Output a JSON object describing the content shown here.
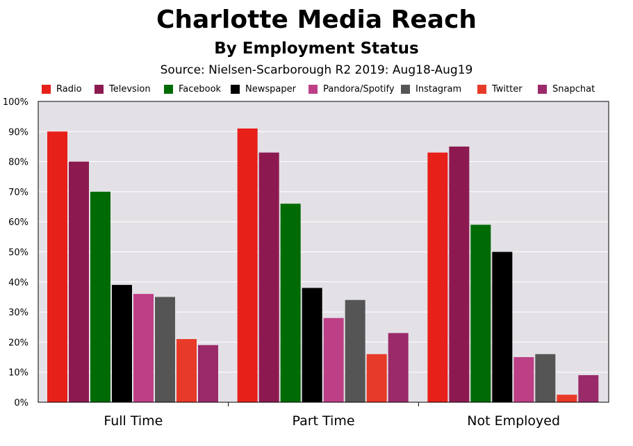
{
  "chart_data": {
    "type": "bar",
    "title": "Charlotte Media Reach",
    "subtitle": "By Employment Status",
    "source": "Source: Nielsen-Scarborough R2 2019: Aug18-Aug19",
    "categories": [
      "Full Time",
      "Part Time",
      "Not Employed"
    ],
    "ylim": [
      0,
      100
    ],
    "yticks": [
      "0%",
      "10%",
      "20%",
      "30%",
      "40%",
      "50%",
      "60%",
      "70%",
      "80%",
      "90%",
      "100%"
    ],
    "grid": true,
    "legend_position": "top",
    "plot_background": "#e3e1e6",
    "series": [
      {
        "name": "Radio",
        "color": "#e8201a",
        "values": [
          90,
          91,
          83
        ]
      },
      {
        "name": "Televsion",
        "color": "#8c1a50",
        "values": [
          80,
          83,
          85
        ]
      },
      {
        "name": "Facebook",
        "color": "#006b05",
        "values": [
          70,
          66,
          59
        ]
      },
      {
        "name": "Newspaper",
        "color": "#000000",
        "values": [
          39,
          38,
          50
        ]
      },
      {
        "name": "Pandora/Spotify",
        "color": "#bd3f85",
        "values": [
          36,
          28,
          15
        ]
      },
      {
        "name": "Instagram",
        "color": "#555555",
        "values": [
          35,
          34,
          16
        ]
      },
      {
        "name": "Twitter",
        "color": "#e83a28",
        "values": [
          21,
          16,
          2.5
        ]
      },
      {
        "name": "Snapchat",
        "color": "#9a2a6a",
        "values": [
          19,
          23,
          9
        ]
      }
    ]
  }
}
